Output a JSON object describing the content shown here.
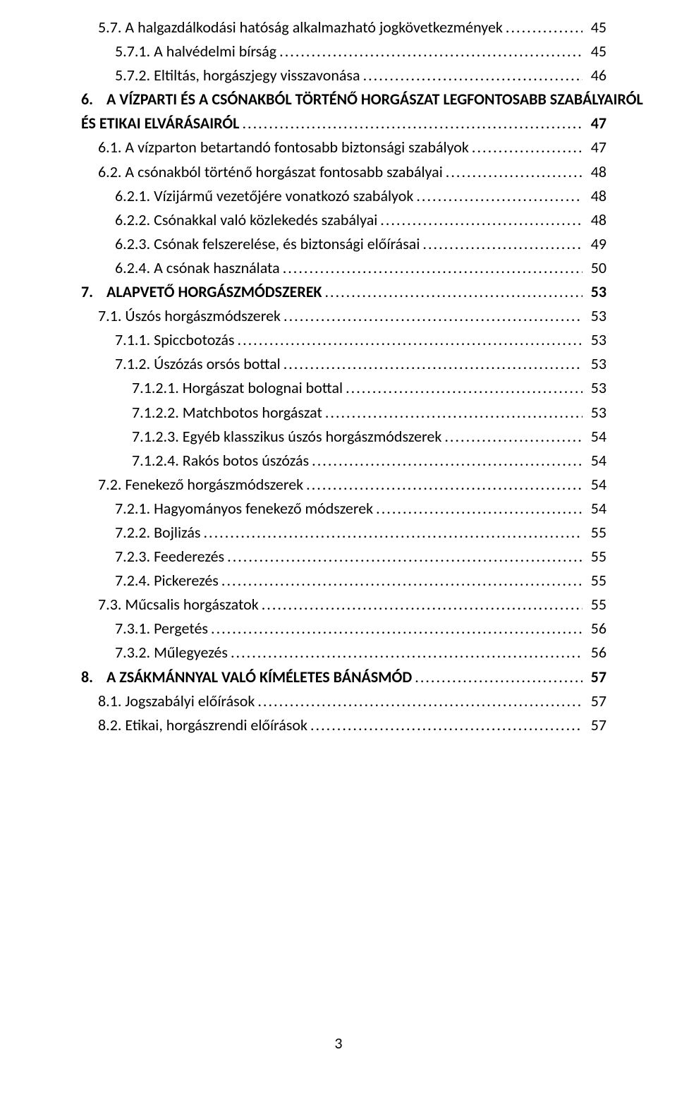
{
  "page_number": "3",
  "entries": [
    {
      "indent": 1,
      "bold": false,
      "label": "5.7. A halgazdálkodási hatóság alkalmazható jogkövetkezmények",
      "page": "45"
    },
    {
      "indent": 2,
      "bold": false,
      "label": "5.7.1. A halvédelmi bírság",
      "page": "45"
    },
    {
      "indent": 2,
      "bold": false,
      "label": "5.7.2. Eltiltás, horgászjegy visszavonása",
      "page": "46"
    },
    {
      "indent": 0,
      "bold": true,
      "num": "6.",
      "label": "A VÍZPARTI ÉS A CSÓNAKBÓL TÖRTÉNŐ HORGÁSZAT LEGFONTOSABB SZABÁLYAIRÓL ÉS ETIKAI ELVÁRÁSAIRÓL",
      "page": "47",
      "wrap": true
    },
    {
      "indent": 1,
      "bold": false,
      "label": "6.1. A vízparton betartandó fontosabb biztonsági szabályok",
      "page": "47"
    },
    {
      "indent": 1,
      "bold": false,
      "label": "6.2. A csónakból történő horgászat fontosabb szabályai",
      "page": "48"
    },
    {
      "indent": 2,
      "bold": false,
      "label": "6.2.1. Vízijármű vezetőjére vonatkozó szabályok",
      "page": "48"
    },
    {
      "indent": 2,
      "bold": false,
      "label": "6.2.2. Csónakkal való közlekedés szabályai",
      "page": "48"
    },
    {
      "indent": 2,
      "bold": false,
      "label": "6.2.3. Csónak felszerelése, és biztonsági előírásai",
      "page": "49"
    },
    {
      "indent": 2,
      "bold": false,
      "label": "6.2.4. A csónak használata",
      "page": "50"
    },
    {
      "indent": 0,
      "bold": true,
      "num": "7.",
      "label": "ALAPVETŐ HORGÁSZMÓDSZEREK",
      "page": "53"
    },
    {
      "indent": 1,
      "bold": false,
      "label": "7.1. Úszós horgászmódszerek",
      "page": "53"
    },
    {
      "indent": 2,
      "bold": false,
      "label": "7.1.1. Spiccbotozás",
      "page": "53"
    },
    {
      "indent": 2,
      "bold": false,
      "label": "7.1.2. Úszózás orsós bottal",
      "page": "53"
    },
    {
      "indent": 3,
      "bold": false,
      "label": "7.1.2.1. Horgászat bolognai bottal",
      "page": "53"
    },
    {
      "indent": 3,
      "bold": false,
      "label": "7.1.2.2. Matchbotos horgászat",
      "page": "53"
    },
    {
      "indent": 3,
      "bold": false,
      "label": "7.1.2.3. Egyéb klasszikus úszós horgászmódszerek",
      "page": "54"
    },
    {
      "indent": 3,
      "bold": false,
      "label": "7.1.2.4. Rakós botos úszózás",
      "page": "54"
    },
    {
      "indent": 1,
      "bold": false,
      "label": "7.2. Fenekező horgászmódszerek",
      "page": "54"
    },
    {
      "indent": 2,
      "bold": false,
      "label": "7.2.1. Hagyományos fenekező módszerek",
      "page": "54"
    },
    {
      "indent": 2,
      "bold": false,
      "label": "7.2.2. Bojlizás",
      "page": "55"
    },
    {
      "indent": 2,
      "bold": false,
      "label": "7.2.3. Feederezés",
      "page": "55"
    },
    {
      "indent": 2,
      "bold": false,
      "label": "7.2.4. Pickerezés",
      "page": "55"
    },
    {
      "indent": 1,
      "bold": false,
      "label": "7.3. Műcsalis horgászatok",
      "page": "55"
    },
    {
      "indent": 2,
      "bold": false,
      "label": "7.3.1. Pergetés",
      "page": "56"
    },
    {
      "indent": 2,
      "bold": false,
      "label": "7.3.2. Műlegyezés",
      "page": "56"
    },
    {
      "indent": 0,
      "bold": true,
      "num": "8.",
      "label": "A ZSÁKMÁNNYAL VALÓ KÍMÉLETES BÁNÁSMÓD",
      "page": "57"
    },
    {
      "indent": 1,
      "bold": false,
      "label": "8.1. Jogszabályi előírások",
      "page": "57"
    },
    {
      "indent": 1,
      "bold": false,
      "label": "8.2. Etikai, horgászrendi előírások",
      "page": "57"
    }
  ]
}
